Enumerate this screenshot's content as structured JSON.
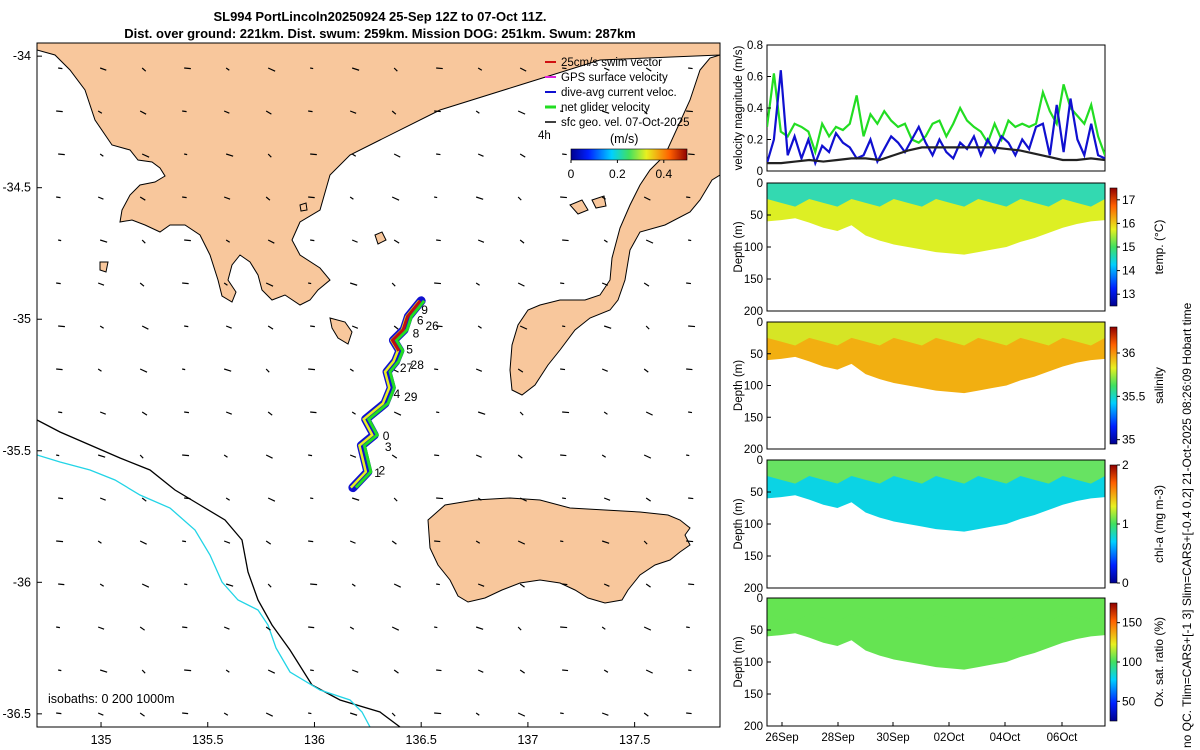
{
  "title_line1": "SL994 PortLincoln20250924 25-Sep 12Z to 07-Oct 11Z.",
  "title_line2": "Dist. over ground: 221km. Dist. swum: 259km. Mission DOG: 251km. Swum: 287km",
  "side_note": "no QC. Tlim=CARS+[-1 3] Slim=CARS+[-0.4 0.2] 21-Oct-2025 08:26:09 Hobart time",
  "colors": {
    "land": "#f8c79c",
    "glider_track": "#1010d0",
    "net": "#22dd22",
    "model": "#222222",
    "iso200": "#000000",
    "iso1000": "#22d4e6"
  },
  "chart_data": [
    {
      "type": "scatter",
      "title": "Glider track map",
      "xlim": [
        134.7,
        137.9
      ],
      "ylim": [
        -36.55,
        -33.95
      ],
      "xticks": [
        135,
        135.5,
        136,
        136.5,
        137,
        137.5
      ],
      "xtick_labels": [
        "135",
        "135.5",
        "136",
        "136.5",
        "137",
        "137.5"
      ],
      "yticks": [
        -34,
        -34.5,
        -35,
        -35.5,
        -36,
        -36.5
      ],
      "ytick_labels": [
        "-34",
        "-34.5",
        "-35",
        "-35.5",
        "-36",
        "-36.5"
      ],
      "legend": [
        "25cm/s swim vector",
        "GPS surface velocity",
        "dive-avg current veloc.",
        "net glider velocity",
        "sfc geo. vel. 07-Oct-2025"
      ],
      "legend_extra": "4h",
      "colorbar": {
        "label": "(m/s)",
        "ticks": [
          "0",
          "0.2",
          "0.4"
        ],
        "range": [
          0,
          0.5
        ]
      },
      "isobath_label": "isobaths: 0   200   1000m",
      "track": [
        [
          136.18,
          -35.64
        ],
        [
          136.25,
          -35.58
        ],
        [
          136.22,
          -35.48
        ],
        [
          136.28,
          -35.44
        ],
        [
          136.24,
          -35.38
        ],
        [
          136.33,
          -35.32
        ],
        [
          136.36,
          -35.26
        ],
        [
          136.34,
          -35.2
        ],
        [
          136.38,
          -35.16
        ],
        [
          136.4,
          -35.12
        ],
        [
          136.37,
          -35.08
        ],
        [
          136.42,
          -35.04
        ],
        [
          136.44,
          -34.99
        ],
        [
          136.47,
          -34.96
        ],
        [
          136.5,
          -34.93
        ]
      ],
      "day_labels": [
        {
          "label": "9",
          "lon": 136.5,
          "lat": -34.98
        },
        {
          "label": "6",
          "lon": 136.48,
          "lat": -35.02
        },
        {
          "label": "26",
          "lon": 136.52,
          "lat": -35.04
        },
        {
          "label": "8",
          "lon": 136.46,
          "lat": -35.07
        },
        {
          "label": "5",
          "lon": 136.43,
          "lat": -35.13
        },
        {
          "label": "27",
          "lon": 136.4,
          "lat": -35.2
        },
        {
          "label": "28",
          "lon": 136.45,
          "lat": -35.19
        },
        {
          "label": "4",
          "lon": 136.37,
          "lat": -35.3
        },
        {
          "label": "29",
          "lon": 136.42,
          "lat": -35.31
        },
        {
          "label": "0",
          "lon": 136.32,
          "lat": -35.46
        },
        {
          "label": "3",
          "lon": 136.33,
          "lat": -35.5
        },
        {
          "label": "2",
          "lon": 136.3,
          "lat": -35.59
        },
        {
          "label": "1",
          "lon": 136.28,
          "lat": -35.6
        }
      ]
    },
    {
      "type": "line",
      "ylabel": "velocity magnitude (m/s)",
      "ylim": [
        0,
        0.8
      ],
      "yticks": [
        0,
        0.2,
        0.4,
        0.6,
        0.8
      ],
      "ytick_labels": [
        "0",
        "0.2",
        "0.4",
        "0.6",
        "0.8"
      ],
      "series": [
        {
          "name": "net glider velocity",
          "color": "#22dd22",
          "values": [
            0.28,
            0.62,
            0.25,
            0.22,
            0.3,
            0.28,
            0.25,
            0.12,
            0.3,
            0.22,
            0.28,
            0.26,
            0.3,
            0.48,
            0.22,
            0.36,
            0.3,
            0.38,
            0.32,
            0.28,
            0.3,
            0.2,
            0.18,
            0.22,
            0.3,
            0.32,
            0.22,
            0.3,
            0.4,
            0.32,
            0.28,
            0.25,
            0.18,
            0.3,
            0.2,
            0.32,
            0.28,
            0.3,
            0.28,
            0.3,
            0.5,
            0.38,
            0.3,
            0.55,
            0.4,
            0.35,
            0.3,
            0.42,
            0.22,
            0.1
          ]
        },
        {
          "name": "dive-avg current veloc.",
          "color": "#1010d0",
          "values": [
            0.05,
            0.2,
            0.64,
            0.1,
            0.22,
            0.08,
            0.2,
            0.05,
            0.16,
            0.12,
            0.24,
            0.18,
            0.15,
            0.08,
            0.1,
            0.2,
            0.06,
            0.14,
            0.22,
            0.18,
            0.12,
            0.2,
            0.28,
            0.18,
            0.1,
            0.2,
            0.12,
            0.08,
            0.18,
            0.14,
            0.22,
            0.1,
            0.2,
            0.12,
            0.22,
            0.18,
            0.1,
            0.2,
            0.14,
            0.28,
            0.3,
            0.1,
            0.42,
            0.12,
            0.46,
            0.2,
            0.1,
            0.3,
            0.1,
            0.08
          ]
        },
        {
          "name": "sfc geo. vel.",
          "color": "#222222",
          "values": [
            0.05,
            0.05,
            0.06,
            0.07,
            0.06,
            0.07,
            0.08,
            0.08,
            0.07,
            0.1,
            0.13,
            0.15,
            0.15,
            0.15,
            0.15,
            0.15,
            0.15,
            0.14,
            0.13,
            0.11,
            0.09,
            0.07,
            0.07,
            0.08,
            0.07
          ]
        }
      ]
    },
    {
      "type": "heatmap",
      "ylabel": "Depth (m)",
      "ylim": [
        0,
        200
      ],
      "yticks": [
        0,
        50,
        100,
        150,
        200
      ],
      "colorbar_label": "temp. (°C)",
      "cbar_ticks": [
        "13",
        "14",
        "15",
        "16",
        "17"
      ],
      "cbar_range": [
        12.5,
        17.5
      ],
      "fill_value": 15.7,
      "top_value": 14.5,
      "bottom_depth_profile": [
        60,
        58,
        55,
        62,
        70,
        75,
        66,
        82,
        90,
        96,
        100,
        104,
        108,
        110,
        112,
        108,
        104,
        100,
        92,
        86,
        78,
        70,
        64,
        60,
        58
      ]
    },
    {
      "type": "heatmap",
      "ylabel": "Depth (m)",
      "ylim": [
        0,
        200
      ],
      "yticks": [
        0,
        50,
        100,
        150,
        200
      ],
      "colorbar_label": "salinity",
      "cbar_ticks": [
        "35",
        "35.5",
        "36"
      ],
      "cbar_range": [
        34.95,
        36.3
      ],
      "fill_value": 35.95,
      "top_value": 35.8,
      "bottom_depth_profile": [
        60,
        58,
        55,
        62,
        70,
        75,
        66,
        82,
        90,
        96,
        100,
        104,
        108,
        110,
        112,
        108,
        104,
        100,
        92,
        86,
        78,
        70,
        64,
        60,
        58
      ]
    },
    {
      "type": "heatmap",
      "ylabel": "Depth (m)",
      "ylim": [
        0,
        200
      ],
      "yticks": [
        0,
        50,
        100,
        150,
        200
      ],
      "colorbar_label": "chl-a (mg m-3)",
      "cbar_ticks": [
        "0",
        "1",
        "2"
      ],
      "cbar_range": [
        0,
        2
      ],
      "fill_value": 0.75,
      "top_value": 1.1,
      "bottom_depth_profile": [
        60,
        58,
        55,
        62,
        70,
        75,
        66,
        82,
        90,
        96,
        100,
        104,
        108,
        110,
        112,
        108,
        104,
        100,
        92,
        86,
        78,
        70,
        64,
        60,
        58
      ]
    },
    {
      "type": "heatmap",
      "ylabel": "Depth (m)",
      "ylim": [
        0,
        200
      ],
      "yticks": [
        0,
        50,
        100,
        150,
        200
      ],
      "xtick_labels": [
        "26Sep",
        "28Sep",
        "30Sep",
        "02Oct",
        "04Oct",
        "06Oct"
      ],
      "colorbar_label": "Ox. sat. ratio (%)",
      "cbar_ticks": [
        "50",
        "100",
        "150"
      ],
      "cbar_range": [
        25,
        175
      ],
      "fill_value": 105,
      "top_value": 105,
      "bottom_depth_profile": [
        60,
        58,
        55,
        62,
        70,
        75,
        66,
        82,
        90,
        96,
        100,
        104,
        108,
        110,
        112,
        108,
        104,
        100,
        92,
        86,
        78,
        70,
        64,
        60,
        58
      ]
    }
  ]
}
